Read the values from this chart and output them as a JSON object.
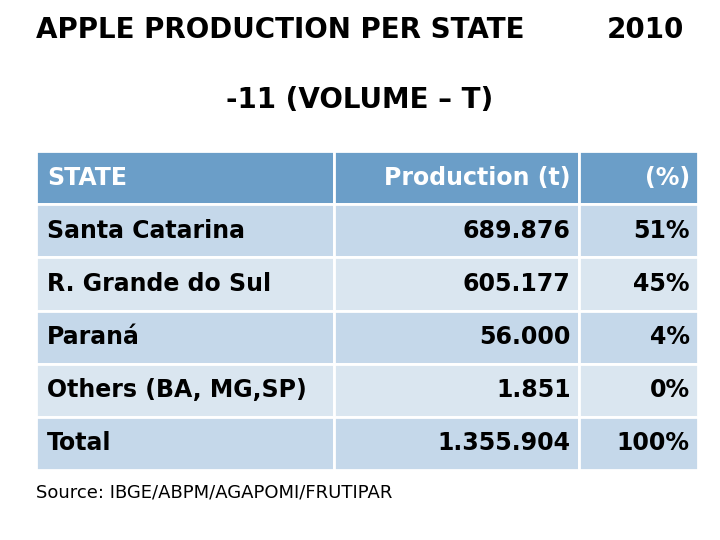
{
  "title_line1": "APPLE PRODUCTION PER STATE",
  "title_year": "2010",
  "title_line2": "-11 (VOLUME – T)",
  "title_fontsize": 20,
  "source_text": "Source: IBGE/ABPM/AGAPOMI/FRUTIPAR",
  "header": [
    "STATE",
    "Production (t)",
    "(%)"
  ],
  "rows": [
    [
      "Santa Catarina",
      "689.876",
      "51%"
    ],
    [
      "R. Grande do Sul",
      "605.177",
      "45%"
    ],
    [
      "Paraná",
      "56.000",
      "4%"
    ],
    [
      "Others (BA, MG,SP)",
      "1.851",
      "0%"
    ],
    [
      "Total",
      "1.355.904",
      "100%"
    ]
  ],
  "header_bg": "#6b9ec8",
  "row_bg_odd": "#c5d8ea",
  "row_bg_even": "#dae6f0",
  "header_text_color": "#ffffff",
  "row_text_color": "#000000",
  "bg_color": "#ffffff",
  "source_fontsize": 13,
  "row_fontsize": 17,
  "header_fontsize": 17
}
